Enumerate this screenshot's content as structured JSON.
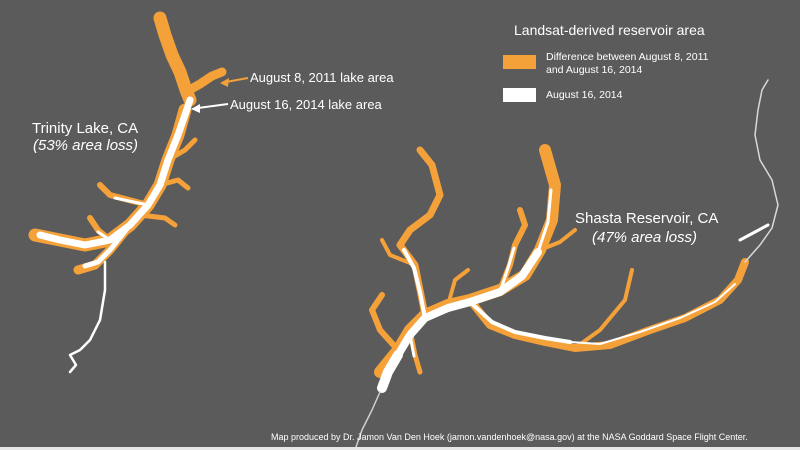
{
  "legend": {
    "title": "Landsat-derived reservoir area",
    "items": [
      {
        "color": "#f4a13a",
        "label_line1": "Difference between August 8, 2011",
        "label_line2": "and August 16, 2014"
      },
      {
        "color": "#ffffff",
        "label_line1": "August 16, 2014",
        "label_line2": ""
      }
    ]
  },
  "trinity": {
    "name": "Trinity Lake, CA",
    "loss": "(53% area loss)",
    "callout_2011": "August 8, 2011 lake area",
    "callout_2014": "August 16, 2014 lake area"
  },
  "shasta": {
    "name": "Shasta Reservoir, CA",
    "loss": "(47% area loss)"
  },
  "credit": "Map produced by Dr. Jamon Van Den Hoek (jamon.vandenhoek@nasa.gov) at the NASA Goddard Space Flight Center.",
  "colors": {
    "background": "#5b5b5b",
    "loss": "#f4a13a",
    "current": "#ffffff"
  }
}
